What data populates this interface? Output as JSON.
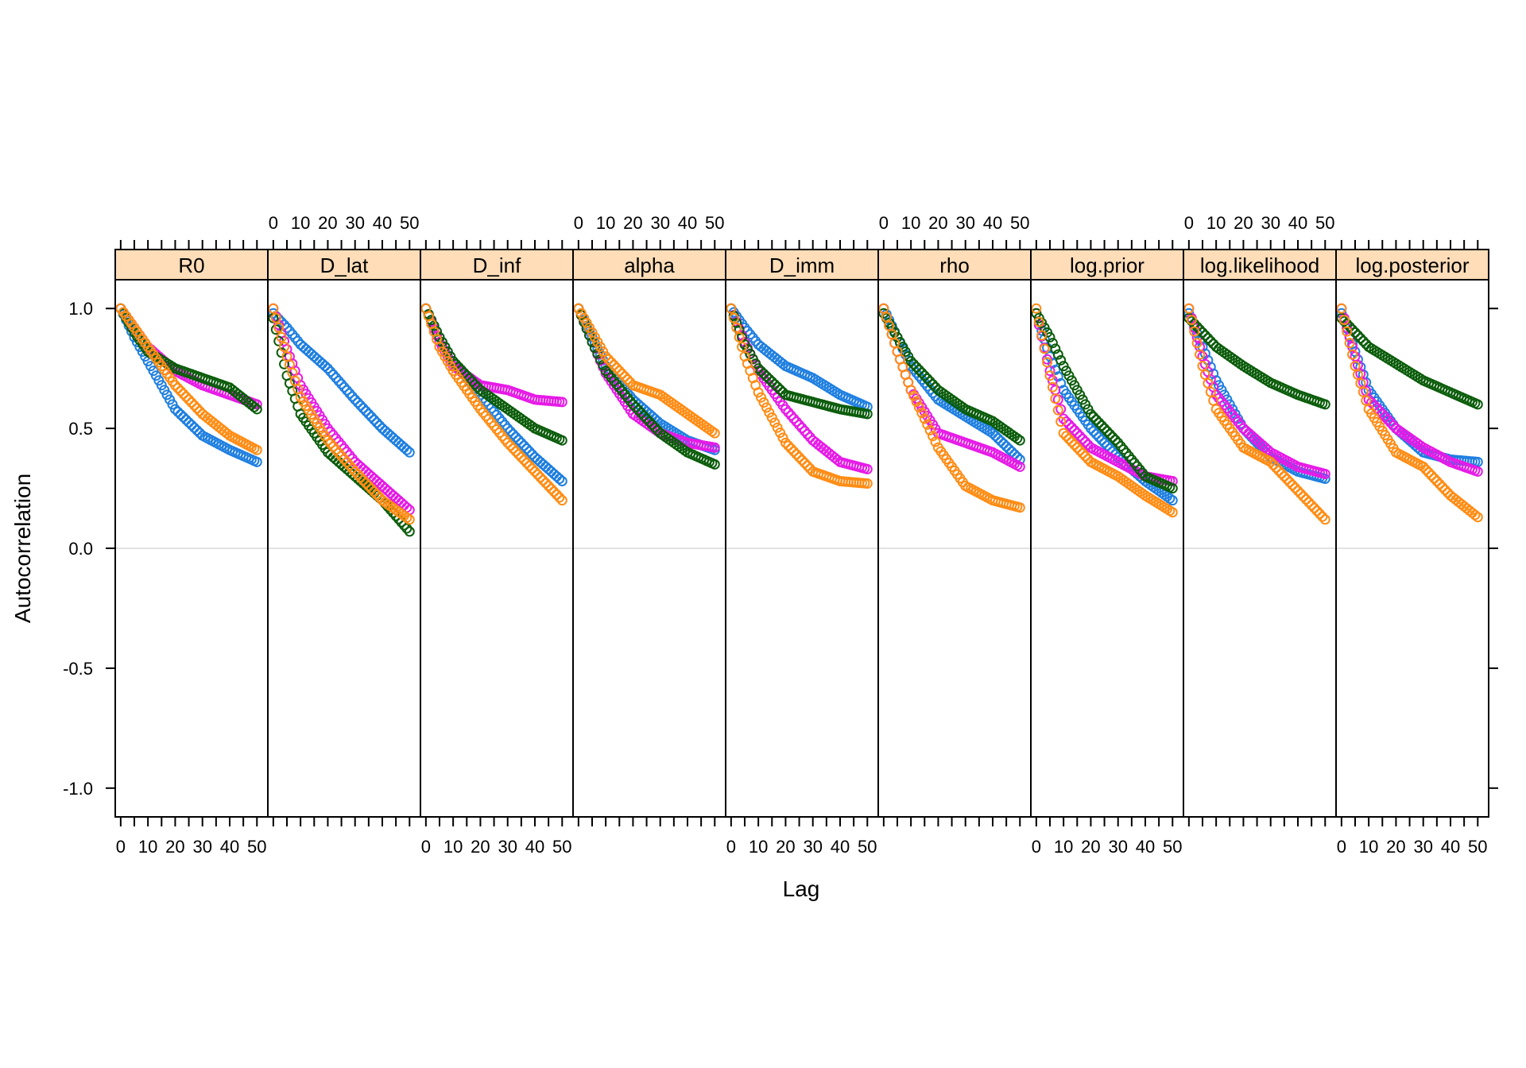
{
  "chart_data": {
    "type": "scatter",
    "xlabel": "Lag",
    "ylabel": "Autocorrelation",
    "xlim": [
      -2,
      54
    ],
    "ylim": [
      -1.12,
      1.12
    ],
    "x_ticks": [
      0,
      10,
      20,
      30,
      40,
      50
    ],
    "y_ticks": [
      -1.0,
      -0.5,
      0.0,
      0.5,
      1.0
    ],
    "y_tick_labels": [
      "-1.0",
      "-0.5",
      "0.0",
      "0.5",
      "1.0"
    ],
    "reference_line_y": 0,
    "strip_fill": "#FFDDB8",
    "marker": "open-circle",
    "series_colors": [
      "#1F7FE0",
      "#E61AE6",
      "#0B5C0B",
      "#FF8C14"
    ],
    "lags": [
      0,
      2,
      4,
      6,
      8,
      10,
      12,
      14,
      16,
      18,
      20,
      22,
      24,
      26,
      28,
      30,
      32,
      34,
      36,
      38,
      40,
      42,
      44,
      46,
      48,
      50
    ],
    "anchors": [
      0,
      5,
      10,
      20,
      30,
      40,
      50
    ],
    "panels": [
      {
        "label": "R0",
        "series": [
          {
            "color": "#1F7FE0",
            "values": [
              1.0,
              0.88,
              0.78,
              0.58,
              0.47,
              0.41,
              0.36
            ]
          },
          {
            "color": "#E61AE6",
            "values": [
              1.0,
              0.92,
              0.84,
              0.74,
              0.68,
              0.64,
              0.6
            ]
          },
          {
            "color": "#0B5C0B",
            "values": [
              1.0,
              0.9,
              0.82,
              0.75,
              0.71,
              0.67,
              0.58
            ]
          },
          {
            "color": "#FF8C14",
            "values": [
              1.0,
              0.92,
              0.84,
              0.68,
              0.56,
              0.47,
              0.41
            ]
          }
        ]
      },
      {
        "label": "D_lat",
        "series": [
          {
            "color": "#1F7FE0",
            "values": [
              0.98,
              0.92,
              0.85,
              0.75,
              0.62,
              0.5,
              0.4
            ]
          },
          {
            "color": "#E61AE6",
            "values": [
              1.0,
              0.83,
              0.68,
              0.5,
              0.36,
              0.26,
              0.16
            ]
          },
          {
            "color": "#0B5C0B",
            "values": [
              0.96,
              0.72,
              0.56,
              0.4,
              0.3,
              0.2,
              0.07
            ]
          },
          {
            "color": "#FF8C14",
            "values": [
              1.0,
              0.8,
              0.63,
              0.45,
              0.32,
              0.2,
              0.12
            ]
          }
        ]
      },
      {
        "label": "D_inf",
        "series": [
          {
            "color": "#1F7FE0",
            "values": [
              1.0,
              0.88,
              0.78,
              0.64,
              0.5,
              0.38,
              0.28
            ]
          },
          {
            "color": "#E61AE6",
            "values": [
              1.0,
              0.86,
              0.76,
              0.68,
              0.66,
              0.62,
              0.61
            ]
          },
          {
            "color": "#0B5C0B",
            "values": [
              1.0,
              0.88,
              0.78,
              0.66,
              0.58,
              0.5,
              0.45
            ]
          },
          {
            "color": "#FF8C14",
            "values": [
              1.0,
              0.84,
              0.74,
              0.58,
              0.44,
              0.32,
              0.2
            ]
          }
        ]
      },
      {
        "label": "alpha",
        "series": [
          {
            "color": "#1F7FE0",
            "values": [
              1.0,
              0.88,
              0.76,
              0.62,
              0.52,
              0.45,
              0.41
            ]
          },
          {
            "color": "#E61AE6",
            "values": [
              1.0,
              0.86,
              0.73,
              0.56,
              0.48,
              0.44,
              0.42
            ]
          },
          {
            "color": "#0B5C0B",
            "values": [
              1.0,
              0.86,
              0.74,
              0.6,
              0.48,
              0.4,
              0.35
            ]
          },
          {
            "color": "#FF8C14",
            "values": [
              1.0,
              0.9,
              0.8,
              0.68,
              0.64,
              0.56,
              0.48
            ]
          }
        ]
      },
      {
        "label": "D_imm",
        "series": [
          {
            "color": "#1F7FE0",
            "values": [
              1.0,
              0.92,
              0.85,
              0.76,
              0.71,
              0.64,
              0.59
            ]
          },
          {
            "color": "#E61AE6",
            "values": [
              1.0,
              0.86,
              0.74,
              0.58,
              0.45,
              0.36,
              0.33
            ]
          },
          {
            "color": "#0B5C0B",
            "values": [
              1.0,
              0.85,
              0.75,
              0.64,
              0.61,
              0.58,
              0.56
            ]
          },
          {
            "color": "#FF8C14",
            "values": [
              1.0,
              0.8,
              0.65,
              0.44,
              0.32,
              0.28,
              0.27
            ]
          }
        ]
      },
      {
        "label": "rho",
        "series": [
          {
            "color": "#1F7FE0",
            "values": [
              1.0,
              0.88,
              0.76,
              0.62,
              0.55,
              0.48,
              0.37
            ]
          },
          {
            "color": "#E61AE6",
            "values": [
              1.0,
              0.82,
              0.66,
              0.48,
              0.44,
              0.4,
              0.34
            ]
          },
          {
            "color": "#0B5C0B",
            "values": [
              0.98,
              0.88,
              0.78,
              0.66,
              0.58,
              0.53,
              0.45
            ]
          },
          {
            "color": "#FF8C14",
            "values": [
              1.0,
              0.82,
              0.66,
              0.42,
              0.26,
              0.2,
              0.17
            ]
          }
        ]
      },
      {
        "label": "log.prior",
        "series": [
          {
            "color": "#1F7FE0",
            "values": [
              0.98,
              0.8,
              0.66,
              0.5,
              0.38,
              0.28,
              0.2
            ]
          },
          {
            "color": "#E61AE6",
            "values": [
              0.98,
              0.74,
              0.54,
              0.42,
              0.36,
              0.3,
              0.28
            ]
          },
          {
            "color": "#0B5C0B",
            "values": [
              0.98,
              0.88,
              0.76,
              0.56,
              0.44,
              0.3,
              0.25
            ]
          },
          {
            "color": "#FF8C14",
            "values": [
              1.0,
              0.72,
              0.48,
              0.36,
              0.3,
              0.22,
              0.15
            ]
          }
        ]
      },
      {
        "label": "log.likelihood",
        "series": [
          {
            "color": "#1F7FE0",
            "values": [
              0.98,
              0.84,
              0.7,
              0.5,
              0.38,
              0.32,
              0.29
            ]
          },
          {
            "color": "#E61AE6",
            "values": [
              1.0,
              0.8,
              0.64,
              0.5,
              0.4,
              0.34,
              0.31
            ]
          },
          {
            "color": "#0B5C0B",
            "values": [
              0.96,
              0.9,
              0.84,
              0.76,
              0.69,
              0.64,
              0.6
            ]
          },
          {
            "color": "#FF8C14",
            "values": [
              1.0,
              0.76,
              0.58,
              0.42,
              0.36,
              0.24,
              0.12
            ]
          }
        ]
      },
      {
        "label": "log.posterior",
        "series": [
          {
            "color": "#1F7FE0",
            "values": [
              0.98,
              0.82,
              0.66,
              0.5,
              0.4,
              0.37,
              0.36
            ]
          },
          {
            "color": "#E61AE6",
            "values": [
              1.0,
              0.8,
              0.62,
              0.5,
              0.42,
              0.36,
              0.32
            ]
          },
          {
            "color": "#0B5C0B",
            "values": [
              0.96,
              0.9,
              0.84,
              0.77,
              0.7,
              0.65,
              0.6
            ]
          },
          {
            "color": "#FF8C14",
            "values": [
              1.0,
              0.76,
              0.58,
              0.4,
              0.34,
              0.22,
              0.13
            ]
          }
        ]
      }
    ]
  }
}
